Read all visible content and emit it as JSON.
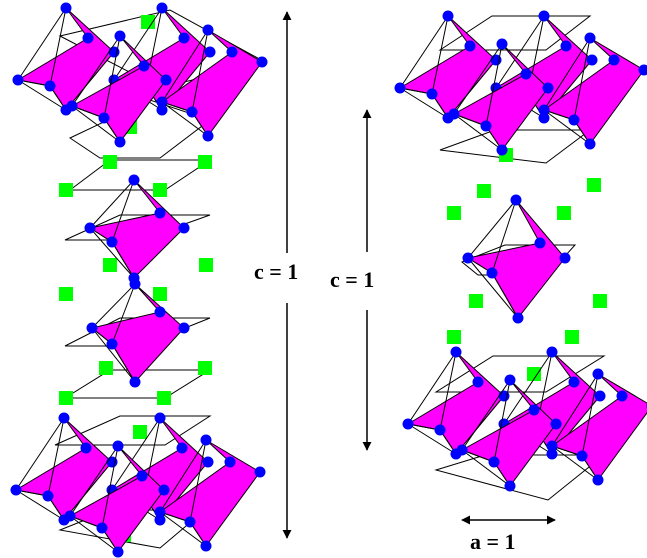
{
  "figure": {
    "labels": {
      "c_left": "c = 1",
      "c_right": "c = 1",
      "a_bottom": "a = 1"
    },
    "colors": {
      "octahedron": "#ff00ff",
      "octahedron_edge": "#000000",
      "anion": "#0000ff",
      "cation": "#00ff00",
      "outline": "#000000"
    }
  }
}
